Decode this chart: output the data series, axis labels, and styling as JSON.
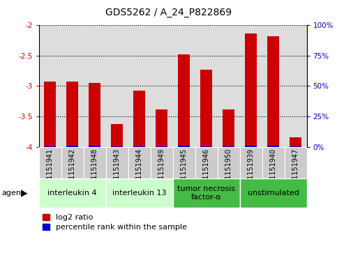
{
  "title": "GDS5262 / A_24_P822869",
  "samples": [
    "GSM1151941",
    "GSM1151942",
    "GSM1151948",
    "GSM1151943",
    "GSM1151944",
    "GSM1151949",
    "GSM1151945",
    "GSM1151946",
    "GSM1151950",
    "GSM1151939",
    "GSM1151940",
    "GSM1151947"
  ],
  "log2_values": [
    -2.93,
    -2.93,
    -2.95,
    -3.63,
    -3.07,
    -3.38,
    -2.48,
    -2.73,
    -3.38,
    -2.13,
    -2.18,
    -3.85
  ],
  "percentile_values": [
    4.0,
    5.0,
    5.0,
    4.0,
    4.0,
    4.0,
    5.5,
    4.5,
    4.0,
    5.5,
    5.5,
    4.0
  ],
  "ymin": -4.0,
  "ymax": -2.0,
  "yticks_left": [
    -4.0,
    -3.5,
    -3.0,
    -2.5,
    -2.0
  ],
  "yticks_right": [
    0,
    25,
    50,
    75,
    100
  ],
  "ytick_right_labels": [
    "0%",
    "25%",
    "50%",
    "75%",
    "100%"
  ],
  "groups": [
    {
      "label": "interleukin 4",
      "start": 0,
      "end": 3,
      "color": "#ccffcc"
    },
    {
      "label": "interleukin 13",
      "start": 3,
      "end": 6,
      "color": "#ccffcc"
    },
    {
      "label": "tumor necrosis\nfactor-α",
      "start": 6,
      "end": 9,
      "color": "#44bb44"
    },
    {
      "label": "unstimulated",
      "start": 9,
      "end": 12,
      "color": "#44bb44"
    }
  ],
  "bar_color": "#cc0000",
  "percentile_color": "#0000cc",
  "bar_width": 0.55,
  "plot_bg_color": "#dddddd",
  "sample_bg_color": "#cccccc",
  "legend_log2_label": "log2 ratio",
  "legend_pct_label": "percentile rank within the sample",
  "agent_label": "agent",
  "left_axis_color": "#cc0000",
  "right_axis_color": "#0000cc",
  "title_fontsize": 10,
  "tick_fontsize": 7.5,
  "label_fontsize": 8,
  "group_fontsize": 8,
  "sample_fontsize": 7
}
